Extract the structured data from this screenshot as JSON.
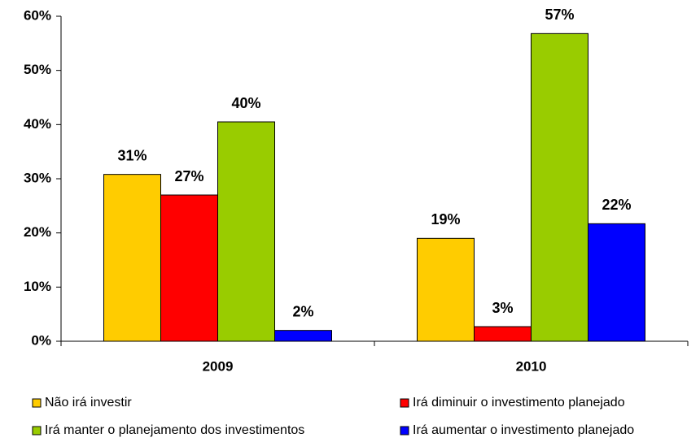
{
  "chart_data": {
    "type": "bar",
    "categories": [
      "2009",
      "2010"
    ],
    "series": [
      {
        "name": "Não irá investir",
        "color": "#ffcc00",
        "values": [
          30.8,
          19
        ],
        "value_labels": [
          "31%",
          "19%"
        ]
      },
      {
        "name": "Irá diminuir o investimento planejado",
        "color": "#ff0000",
        "values": [
          27,
          2.7
        ],
        "value_labels": [
          "27%",
          "3%"
        ]
      },
      {
        "name": "Irá manter o planejamento dos investimentos",
        "color": "#99cc00",
        "values": [
          40.5,
          56.8
        ],
        "value_labels": [
          "40%",
          "57%"
        ]
      },
      {
        "name": "Irá aumentar o investimento planejado",
        "color": "#0000ff",
        "values": [
          2,
          21.7
        ],
        "value_labels": [
          "2%",
          "22%"
        ]
      }
    ],
    "ylim": [
      0,
      60
    ],
    "yticks": [
      {
        "value": 0,
        "label": "0%"
      },
      {
        "value": 10,
        "label": "10%"
      },
      {
        "value": 20,
        "label": "20%"
      },
      {
        "value": 30,
        "label": "30%"
      },
      {
        "value": 40,
        "label": "40%"
      },
      {
        "value": 50,
        "label": "50%"
      },
      {
        "value": 60,
        "label": "60%"
      }
    ],
    "legend": "bottom"
  }
}
